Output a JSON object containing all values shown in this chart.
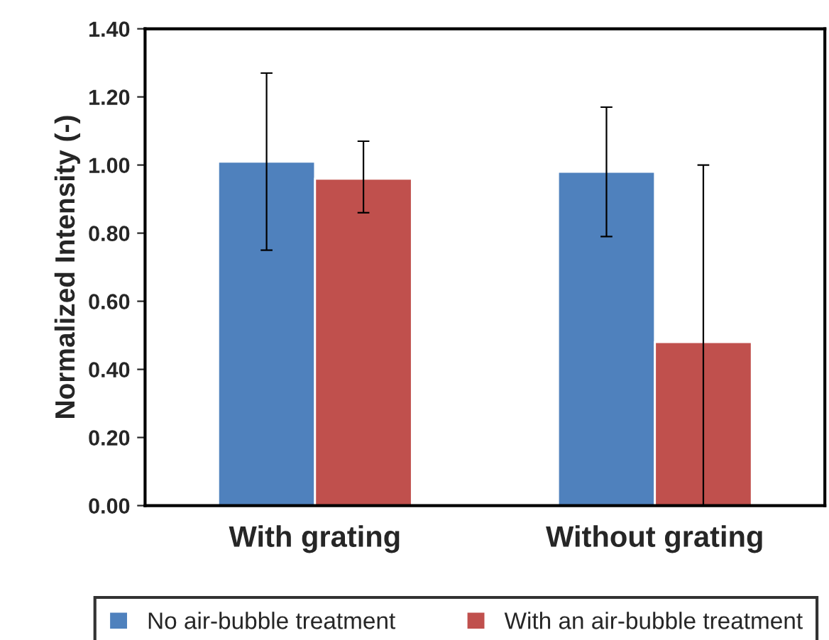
{
  "chart_data": {
    "type": "bar",
    "ylabel": "Normalized Intensity (-)",
    "categories": [
      "With grating",
      "Without grating"
    ],
    "series": [
      {
        "name": "No air-bubble treatment",
        "color": "#4f81bd",
        "values": [
          1.01,
          0.98
        ],
        "errors": [
          [
            0.75,
            1.27
          ],
          [
            0.79,
            1.17
          ]
        ]
      },
      {
        "name": "With an air-bubble treatment",
        "color": "#c0504d",
        "values": [
          0.96,
          0.48
        ],
        "errors": [
          [
            0.86,
            1.07
          ],
          [
            0.0,
            1.0
          ]
        ]
      }
    ],
    "ylim": [
      0,
      1.4
    ],
    "yticks": [
      {
        "value": 0,
        "label": "0.00"
      },
      {
        "value": 0.2,
        "label": "0.20"
      },
      {
        "value": 0.4,
        "label": "0.40"
      },
      {
        "value": 0.6,
        "label": "0.60"
      },
      {
        "value": 0.8,
        "label": "0.80"
      },
      {
        "value": 1.0,
        "label": "1.00"
      },
      {
        "value": 1.2,
        "label": "1.20"
      },
      {
        "value": 1.4,
        "label": "1.40"
      }
    ],
    "grid": false,
    "legend": "bottom"
  }
}
